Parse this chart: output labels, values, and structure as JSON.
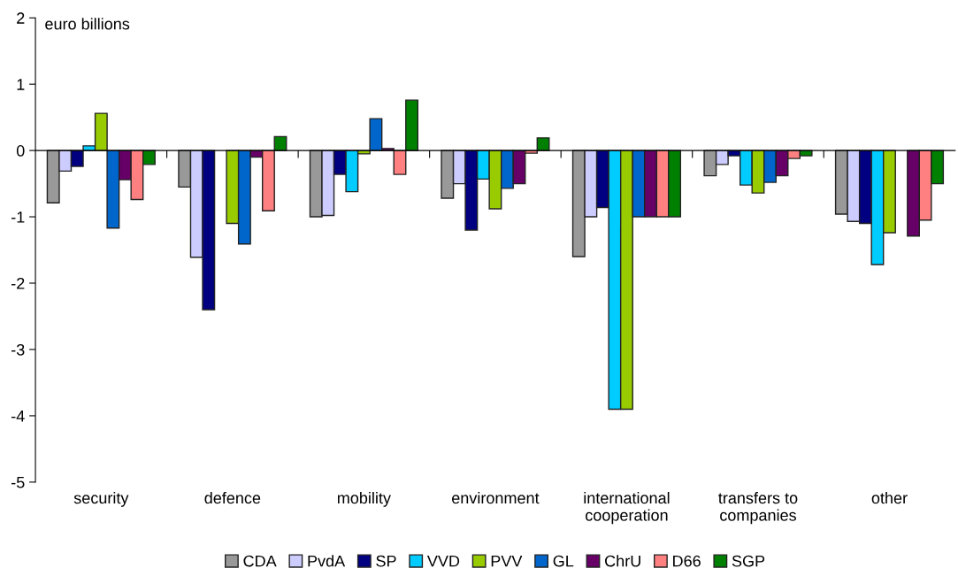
{
  "chart_data": {
    "type": "bar",
    "ylabel": "euro billions",
    "categories": [
      "security",
      "defence",
      "mobility",
      "environment",
      "international\ncooperation",
      "transfers to\ncompanies",
      "other"
    ],
    "series": [
      {
        "name": "CDA",
        "color": "#999999",
        "values": [
          -0.79,
          -0.55,
          -1.0,
          -0.72,
          -1.6,
          -0.38,
          -0.96
        ]
      },
      {
        "name": "PvdA",
        "color": "#ccccff",
        "values": [
          -0.31,
          -1.61,
          -0.98,
          -0.5,
          -1.0,
          -0.21,
          -1.07
        ]
      },
      {
        "name": "SP",
        "color": "#000080",
        "values": [
          -0.24,
          -2.4,
          -0.36,
          -1.2,
          -0.86,
          -0.08,
          -1.1
        ]
      },
      {
        "name": "VVD",
        "color": "#00ccff",
        "values": [
          0.07,
          null,
          -0.62,
          -0.43,
          -3.9,
          -0.52,
          -1.72
        ]
      },
      {
        "name": "PVV",
        "color": "#99cc00",
        "values": [
          0.56,
          -1.1,
          -0.05,
          -0.88,
          -3.9,
          -0.64,
          -1.24
        ]
      },
      {
        "name": "GL",
        "color": "#0066cc",
        "values": [
          -1.17,
          -1.41,
          0.48,
          -0.57,
          -1.0,
          -0.48,
          null
        ]
      },
      {
        "name": "ChrU",
        "color": "#660066",
        "values": [
          -0.44,
          -0.1,
          0.03,
          -0.5,
          -1.0,
          -0.38,
          -1.29
        ]
      },
      {
        "name": "D66",
        "color": "#ff8080",
        "values": [
          -0.74,
          -0.91,
          -0.36,
          -0.04,
          -1.0,
          -0.12,
          -1.05
        ]
      },
      {
        "name": "SGP",
        "color": "#008000",
        "values": [
          -0.21,
          0.21,
          0.76,
          0.19,
          -1.0,
          -0.08,
          -0.5
        ]
      }
    ],
    "ylim": [
      -5,
      2
    ],
    "yticks": [
      -5,
      -4,
      -3,
      -2,
      -1,
      0,
      1,
      2
    ],
    "legend": "bottom"
  }
}
